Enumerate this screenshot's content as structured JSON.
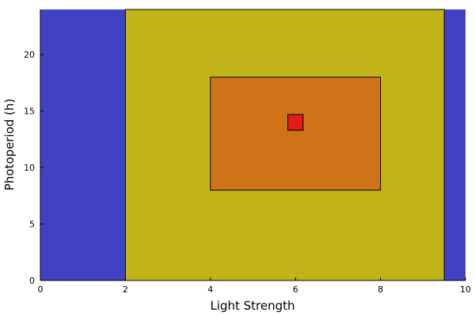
{
  "chart_data": {
    "type": "area",
    "title": "",
    "xlabel": "Light Strength",
    "ylabel": "Photoperiod (h)",
    "xlim": [
      0,
      10
    ],
    "ylim": [
      0,
      24
    ],
    "x_ticks": [
      "0",
      "2",
      "4",
      "6",
      "8",
      "10"
    ],
    "y_ticks": [
      "0",
      "5",
      "10",
      "15",
      "20"
    ],
    "grid": false,
    "legend": "none",
    "regions": [
      {
        "x": [
          0,
          10
        ],
        "y": [
          0,
          24
        ],
        "color": "#4141c3",
        "outline": false
      },
      {
        "x": [
          2,
          9.5
        ],
        "y": [
          0,
          24
        ],
        "color": "#c1b419",
        "outline": true
      },
      {
        "x": [
          4,
          8
        ],
        "y": [
          8,
          18
        ],
        "color": "#cf7319",
        "outline": true
      },
      {
        "x": [
          5.82,
          6.18
        ],
        "y": [
          13.3,
          14.7
        ],
        "color": "#e51b1b",
        "outline": true
      }
    ]
  }
}
